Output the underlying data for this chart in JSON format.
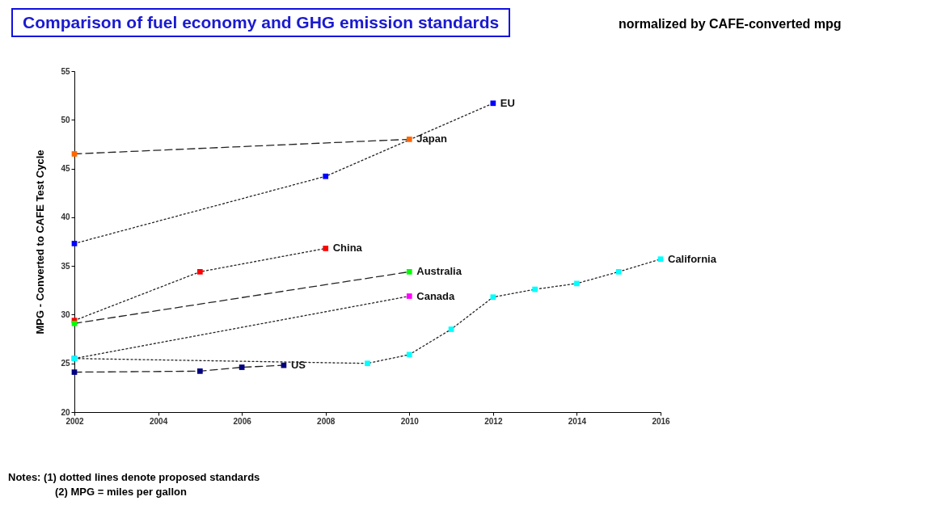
{
  "chart_data": {
    "type": "line",
    "title": "Comparison of fuel economy and GHG emission standards",
    "subtitle": "normalized by CAFE-converted mpg",
    "ylabel": "MPG - Converted to CAFE Test Cycle",
    "annotations": [
      "Notes: (1) dotted lines denote proposed standards",
      "(2) MPG = miles per gallon"
    ],
    "xlim": [
      2002,
      2016
    ],
    "xticks": [
      2002,
      2004,
      2006,
      2008,
      2010,
      2012,
      2014,
      2016
    ],
    "ylim": [
      20,
      55
    ],
    "yticks": [
      20,
      25,
      30,
      35,
      40,
      45,
      50,
      55
    ],
    "marker": "square",
    "series": [
      {
        "name": "EU",
        "color": "#0000ff",
        "line_style": "dotted",
        "x": [
          2002,
          2008,
          2012
        ],
        "values": [
          37.3,
          44.2,
          51.7
        ]
      },
      {
        "name": "Japan",
        "color": "#ff6600",
        "line_style": "dashed",
        "x": [
          2002,
          2010
        ],
        "values": [
          46.5,
          48.0
        ]
      },
      {
        "name": "China",
        "color": "#ff0000",
        "line_style": "dotted",
        "x": [
          2002,
          2005,
          2008
        ],
        "values": [
          29.4,
          34.4,
          36.8
        ]
      },
      {
        "name": "Australia",
        "color": "#00ff00",
        "line_style": "dashed",
        "x": [
          2002,
          2010
        ],
        "values": [
          29.1,
          34.4
        ]
      },
      {
        "name": "Canada",
        "color": "#ff00ff",
        "line_style": "dotted",
        "x": [
          2002,
          2010
        ],
        "values": [
          25.5,
          31.9
        ]
      },
      {
        "name": "US",
        "color": "#000080",
        "line_style": "dashed",
        "x": [
          2002,
          2005,
          2006,
          2007
        ],
        "values": [
          24.1,
          24.2,
          24.6,
          24.8
        ]
      },
      {
        "name": "California",
        "color": "#00ffff",
        "line_style": "dotted",
        "x": [
          2002,
          2009,
          2010,
          2011,
          2012,
          2013,
          2014,
          2015,
          2016
        ],
        "values": [
          25.5,
          25.0,
          25.9,
          28.5,
          31.8,
          32.6,
          33.2,
          34.4,
          35.7
        ]
      }
    ]
  }
}
